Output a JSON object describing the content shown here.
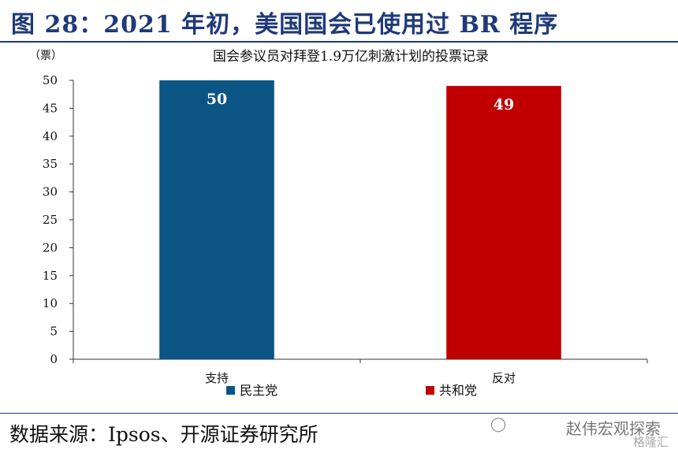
{
  "figure_title": "图 28：2021 年初，美国国会已使用过 BR 程序",
  "source_text": "数据来源：Ipsos、开源证券研究所",
  "watermark": {
    "line1": "赵伟宏观探索",
    "line2": "格隆汇",
    "icon": "wechat-icon"
  },
  "colors": {
    "title": "#1f3a7a",
    "democrat": "#0b5584",
    "republican": "#c00000"
  },
  "chart_data": {
    "type": "bar",
    "title": "国会参议员对拜登1.9万亿刺激计划的投票记录",
    "unit_label": "（票）",
    "categories": [
      "支持",
      "反对"
    ],
    "series": [
      {
        "name": "民主党",
        "values": [
          50,
          null
        ]
      },
      {
        "name": "共和党",
        "values": [
          null,
          49
        ]
      }
    ],
    "data_labels": [
      "50",
      "49"
    ],
    "ylim": [
      0,
      50
    ],
    "yticks": [
      0,
      5,
      10,
      15,
      20,
      25,
      30,
      35,
      40,
      45,
      50
    ],
    "grid": false,
    "legend_position": "bottom"
  }
}
